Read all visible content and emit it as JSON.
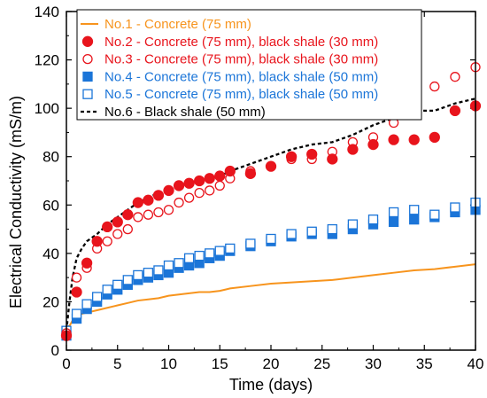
{
  "chart_data": {
    "type": "line",
    "xlabel": "Time (days)",
    "ylabel": "Electrical Conductivity (mS/m)",
    "xlim": [
      0,
      40
    ],
    "ylim": [
      0,
      140
    ],
    "xticks": [
      0,
      5,
      10,
      15,
      20,
      25,
      30,
      35,
      40
    ],
    "yticks": [
      0,
      20,
      40,
      60,
      80,
      100,
      120,
      140
    ],
    "grid": false,
    "legend_position": "top-left",
    "series": [
      {
        "name": "No.1 - Concrete (75 mm)",
        "style": "line",
        "color": "#F7941D",
        "x": [
          0,
          0.3,
          0.7,
          1,
          1.5,
          2,
          3,
          4,
          5,
          6,
          7,
          8,
          9,
          10,
          11,
          12,
          13,
          14,
          15,
          16,
          18,
          20,
          22,
          24,
          26,
          28,
          30,
          32,
          34,
          36,
          38,
          40
        ],
        "y": [
          6,
          10,
          13,
          14,
          15,
          15.5,
          16.5,
          17.5,
          18.5,
          19.5,
          20.5,
          21,
          21.5,
          22.5,
          23,
          23.5,
          24,
          24,
          24.5,
          25.5,
          26.5,
          27.5,
          28,
          28.5,
          29,
          30,
          31,
          32,
          33,
          33.5,
          34.5,
          35.5
        ]
      },
      {
        "name": "No.2 - Concrete (75 mm), black shale (30 mm)",
        "style": "filled-circle",
        "color": "#E8141C",
        "x": [
          0,
          1,
          2,
          3,
          4,
          5,
          6,
          7,
          8,
          9,
          10,
          11,
          12,
          13,
          14,
          15,
          16,
          18,
          20,
          22,
          24,
          26,
          28,
          30,
          32,
          34,
          36,
          38,
          40
        ],
        "y": [
          6,
          24,
          36,
          45,
          51,
          53,
          56,
          61,
          62,
          64,
          66,
          68,
          69,
          70,
          71,
          72,
          74,
          73,
          76,
          80,
          81,
          79,
          83,
          85,
          87,
          87,
          88,
          99,
          101
        ]
      },
      {
        "name": "No.3 - Concrete (75 mm), black shale (30 mm)",
        "style": "open-circle",
        "color": "#E8141C",
        "x": [
          0,
          1,
          2,
          3,
          4,
          5,
          6,
          7,
          8,
          9,
          10,
          11,
          12,
          13,
          14,
          15,
          16,
          18,
          20,
          22,
          24,
          26,
          28,
          30,
          32,
          34,
          36,
          38,
          40
        ],
        "y": [
          7,
          30,
          34,
          42,
          45,
          48,
          50,
          55,
          56,
          57,
          58,
          61,
          63,
          65,
          66,
          68,
          71,
          74,
          76,
          79,
          79,
          82,
          86,
          88,
          94,
          98,
          109,
          113,
          117
        ]
      },
      {
        "name": "No.4 - Concrete (75 mm), black shale (50 mm)",
        "style": "filled-square",
        "color": "#1B75D8",
        "x": [
          0,
          1,
          2,
          3,
          4,
          5,
          6,
          7,
          8,
          9,
          10,
          11,
          12,
          13,
          14,
          15,
          16,
          18,
          20,
          22,
          24,
          26,
          28,
          30,
          32,
          34,
          36,
          38,
          40
        ],
        "y": [
          6,
          13,
          17,
          20,
          23,
          25,
          27,
          29,
          30,
          31,
          32,
          34,
          35,
          36,
          38,
          39,
          41,
          43,
          45,
          47,
          48,
          48,
          50,
          52,
          53,
          54,
          55,
          57,
          58
        ]
      },
      {
        "name": "No.5 - Concrete (75 mm), black shale (50 mm)",
        "style": "open-square",
        "color": "#1B75D8",
        "x": [
          0,
          1,
          2,
          3,
          4,
          5,
          6,
          7,
          8,
          9,
          10,
          11,
          12,
          13,
          14,
          15,
          16,
          18,
          20,
          22,
          24,
          26,
          28,
          30,
          32,
          34,
          36,
          38,
          40
        ],
        "y": [
          8,
          15,
          19,
          22,
          25,
          27,
          29,
          31,
          32,
          33,
          35,
          36,
          38,
          39,
          40,
          41,
          42,
          44,
          46,
          48,
          49,
          50,
          52,
          54,
          57,
          58,
          56,
          59,
          61
        ]
      },
      {
        "name": "No.6 - Black shale (50 mm)",
        "style": "dashed-line",
        "color": "#000000",
        "x": [
          0,
          0.3,
          0.6,
          1,
          1.5,
          2,
          3,
          4,
          5,
          6,
          7,
          8,
          9,
          10,
          11,
          12,
          13,
          14,
          15,
          16,
          18,
          20,
          22,
          24,
          26,
          28,
          30,
          32,
          34,
          36,
          38,
          40
        ],
        "y": [
          8,
          20,
          30,
          38,
          42,
          45,
          48,
          52,
          55,
          58,
          61,
          63,
          65,
          66,
          68,
          69,
          70,
          71,
          72,
          74,
          77,
          80,
          83,
          85,
          86,
          89,
          93,
          96,
          99,
          99,
          102,
          104
        ]
      }
    ]
  }
}
